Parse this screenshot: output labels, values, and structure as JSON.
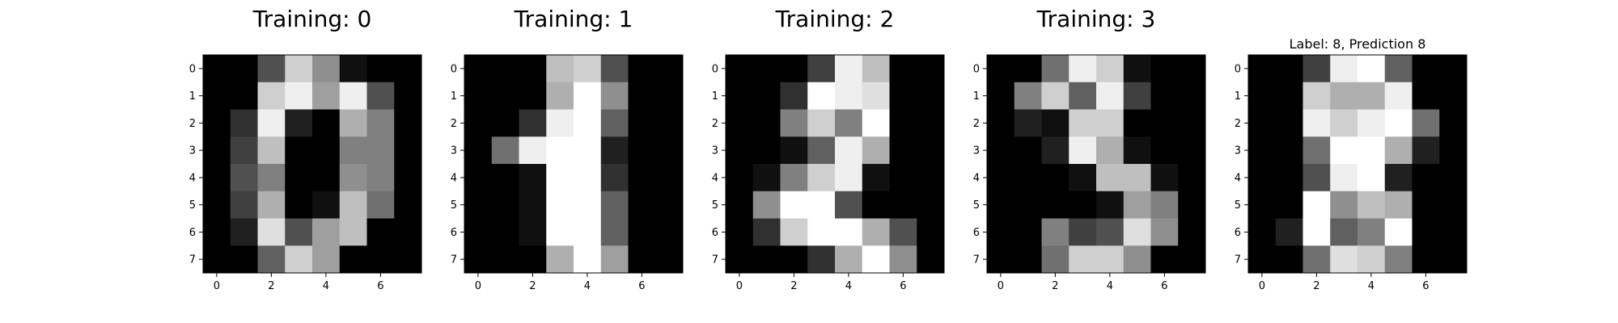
{
  "chart_data": [
    {
      "type": "heatmap",
      "title": "Training: 0",
      "colormap": "gray_r",
      "value_range": [
        0,
        16
      ],
      "xticks": [
        "0",
        "2",
        "4",
        "6"
      ],
      "yticks": [
        "0",
        "1",
        "2",
        "3",
        "4",
        "5",
        "6",
        "7"
      ],
      "values": [
        [
          0,
          0,
          5,
          13,
          9,
          1,
          0,
          0
        ],
        [
          0,
          0,
          13,
          15,
          10,
          15,
          5,
          0
        ],
        [
          0,
          3,
          15,
          2,
          0,
          11,
          8,
          0
        ],
        [
          0,
          4,
          12,
          0,
          0,
          8,
          8,
          0
        ],
        [
          0,
          5,
          8,
          0,
          0,
          9,
          8,
          0
        ],
        [
          0,
          4,
          11,
          0,
          1,
          12,
          7,
          0
        ],
        [
          0,
          2,
          14,
          5,
          10,
          12,
          0,
          0
        ],
        [
          0,
          0,
          6,
          13,
          10,
          0,
          0,
          0
        ]
      ]
    },
    {
      "type": "heatmap",
      "title": "Training: 1",
      "colormap": "gray_r",
      "value_range": [
        0,
        16
      ],
      "xticks": [
        "0",
        "2",
        "4",
        "6"
      ],
      "yticks": [
        "0",
        "1",
        "2",
        "3",
        "4",
        "5",
        "6",
        "7"
      ],
      "values": [
        [
          0,
          0,
          0,
          12,
          13,
          5,
          0,
          0
        ],
        [
          0,
          0,
          0,
          11,
          16,
          9,
          0,
          0
        ],
        [
          0,
          0,
          3,
          15,
          16,
          6,
          0,
          0
        ],
        [
          0,
          7,
          15,
          16,
          16,
          2,
          0,
          0
        ],
        [
          0,
          0,
          1,
          16,
          16,
          3,
          0,
          0
        ],
        [
          0,
          0,
          1,
          16,
          16,
          6,
          0,
          0
        ],
        [
          0,
          0,
          1,
          16,
          16,
          6,
          0,
          0
        ],
        [
          0,
          0,
          0,
          11,
          16,
          10,
          0,
          0
        ]
      ]
    },
    {
      "type": "heatmap",
      "title": "Training: 2",
      "colormap": "gray_r",
      "value_range": [
        0,
        16
      ],
      "xticks": [
        "0",
        "2",
        "4",
        "6"
      ],
      "yticks": [
        "0",
        "1",
        "2",
        "3",
        "4",
        "5",
        "6",
        "7"
      ],
      "values": [
        [
          0,
          0,
          0,
          4,
          15,
          12,
          0,
          0
        ],
        [
          0,
          0,
          3,
          16,
          15,
          14,
          0,
          0
        ],
        [
          0,
          0,
          8,
          13,
          8,
          16,
          0,
          0
        ],
        [
          0,
          0,
          1,
          6,
          15,
          11,
          0,
          0
        ],
        [
          0,
          1,
          8,
          13,
          15,
          1,
          0,
          0
        ],
        [
          0,
          9,
          16,
          16,
          5,
          0,
          0,
          0
        ],
        [
          0,
          3,
          13,
          16,
          16,
          11,
          5,
          0
        ],
        [
          0,
          0,
          0,
          3,
          11,
          16,
          9,
          0
        ]
      ]
    },
    {
      "type": "heatmap",
      "title": "Training: 3",
      "colormap": "gray_r",
      "value_range": [
        0,
        16
      ],
      "xticks": [
        "0",
        "2",
        "4",
        "6"
      ],
      "yticks": [
        "0",
        "1",
        "2",
        "3",
        "4",
        "5",
        "6",
        "7"
      ],
      "values": [
        [
          0,
          0,
          7,
          15,
          13,
          1,
          0,
          0
        ],
        [
          0,
          8,
          13,
          6,
          15,
          4,
          0,
          0
        ],
        [
          0,
          2,
          1,
          13,
          13,
          0,
          0,
          0
        ],
        [
          0,
          0,
          2,
          15,
          11,
          1,
          0,
          0
        ],
        [
          0,
          0,
          0,
          1,
          12,
          12,
          1,
          0
        ],
        [
          0,
          0,
          0,
          0,
          1,
          10,
          8,
          0
        ],
        [
          0,
          0,
          8,
          4,
          5,
          14,
          9,
          0
        ],
        [
          0,
          0,
          7,
          13,
          13,
          9,
          0,
          0
        ]
      ]
    },
    {
      "type": "heatmap",
      "title": "Label: 8, Prediction 8",
      "colormap": "gray_r",
      "value_range": [
        0,
        16
      ],
      "xticks": [
        "0",
        "2",
        "4",
        "6"
      ],
      "yticks": [
        "0",
        "1",
        "2",
        "3",
        "4",
        "5",
        "6",
        "7"
      ],
      "values": [
        [
          0,
          0,
          4,
          15,
          16,
          6,
          0,
          0
        ],
        [
          0,
          0,
          13,
          11,
          11,
          15,
          0,
          0
        ],
        [
          0,
          0,
          15,
          13,
          15,
          16,
          7,
          0
        ],
        [
          0,
          0,
          7,
          16,
          16,
          11,
          2,
          0
        ],
        [
          0,
          0,
          5,
          15,
          16,
          2,
          0,
          0
        ],
        [
          0,
          0,
          16,
          9,
          12,
          11,
          0,
          0
        ],
        [
          0,
          2,
          16,
          6,
          8,
          16,
          0,
          0
        ],
        [
          0,
          0,
          7,
          14,
          13,
          8,
          0,
          0
        ]
      ]
    }
  ]
}
